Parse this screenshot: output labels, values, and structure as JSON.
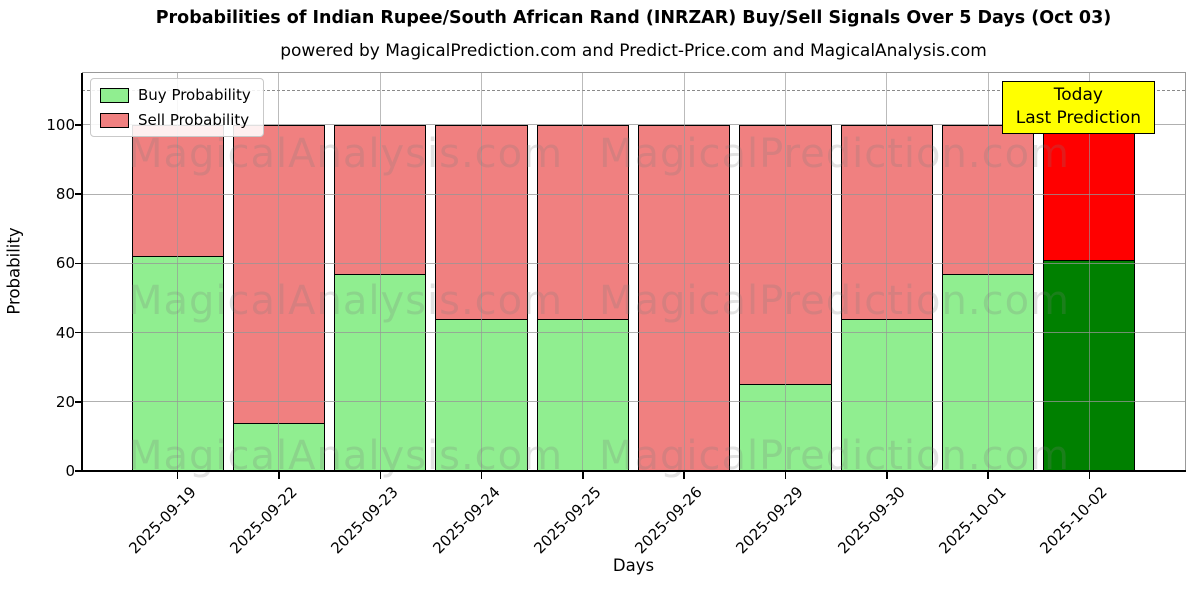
{
  "title": "Probabilities of Indian Rupee/South African Rand (INRZAR) Buy/Sell Signals Over 5 Days (Oct 03)",
  "subtitle": "powered by MagicalPrediction.com and Predict-Price.com and MagicalAnalysis.com",
  "legend": {
    "buy_label": "Buy Probability",
    "sell_label": "Sell Probability"
  },
  "annotation": {
    "line1": "Today",
    "line2": "Last Prediction",
    "bg_color": "#ffff00"
  },
  "watermarks": {
    "left_text": "MagicalAnalysis.com",
    "right_text": "MagicalPrediction.com"
  },
  "colors": {
    "buy": "#90EE90",
    "sell": "#F08080",
    "buy_last": "#008000",
    "sell_last": "#FF0000",
    "bar_edge": "#000000"
  },
  "chart_data": {
    "type": "bar",
    "stacked": true,
    "title": "Probabilities of Indian Rupee/South African Rand (INRZAR) Buy/Sell Signals Over 5 Days (Oct 03)",
    "xlabel": "Days",
    "ylabel": "Probability",
    "categories": [
      "2025-09-19",
      "2025-09-22",
      "2025-09-23",
      "2025-09-24",
      "2025-09-25",
      "2025-09-26",
      "2025-09-29",
      "2025-09-30",
      "2025-10-01",
      "2025-10-02"
    ],
    "series": [
      {
        "name": "Buy Probability",
        "values": [
          62,
          14,
          57,
          44,
          44,
          0,
          25,
          44,
          57,
          61
        ]
      },
      {
        "name": "Sell Probability",
        "values": [
          38,
          86,
          43,
          56,
          56,
          100,
          75,
          56,
          43,
          39
        ]
      }
    ],
    "ylim": [
      0,
      115
    ],
    "yticks": [
      0,
      20,
      40,
      60,
      80,
      100
    ],
    "dashed_line_y": 110,
    "grid": true,
    "legend_position": "upper left",
    "last_bar_highlight": true
  }
}
